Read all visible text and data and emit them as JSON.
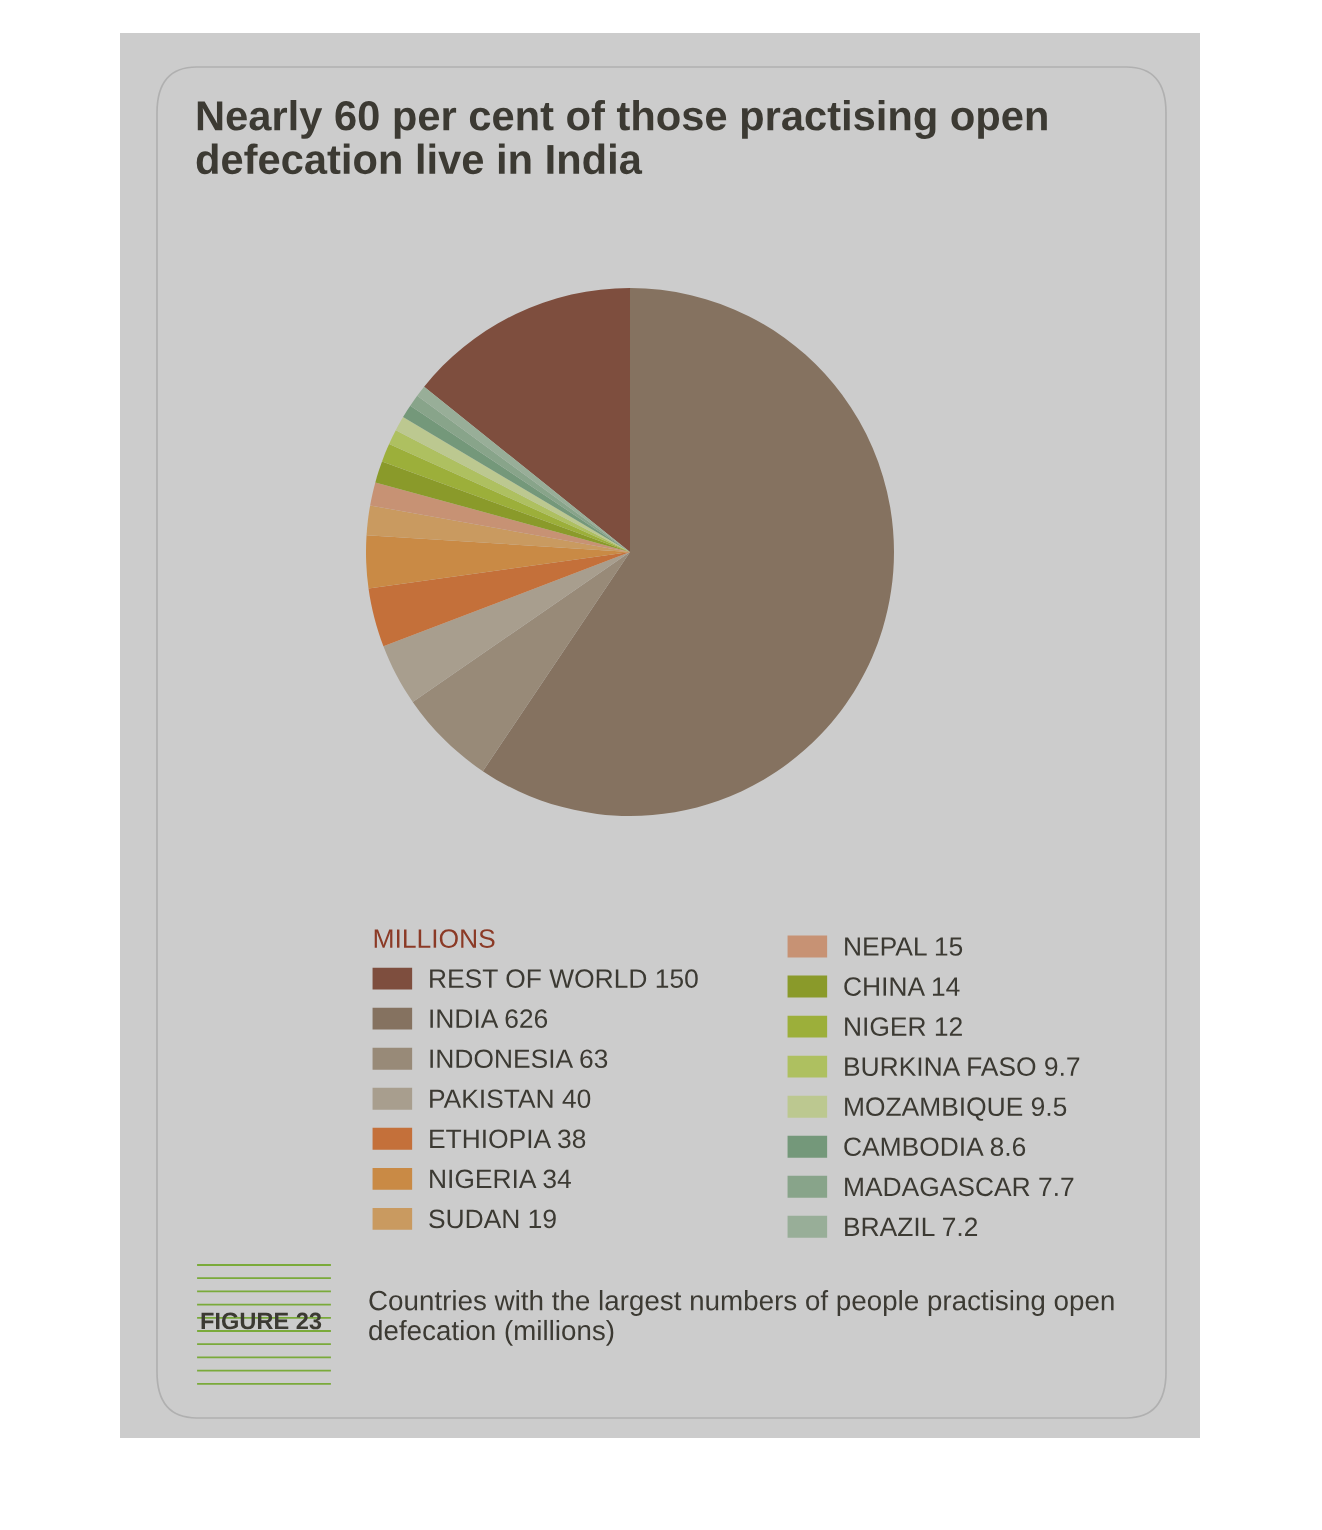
{
  "chart_data": {
    "type": "pie",
    "title": "Nearly 60 per cent of those practising open defecation live in India",
    "legend_title": "MILLIONS",
    "legend": "bottom",
    "categories": [
      "REST OF WORLD 150",
      "INDIA 626",
      "INDONESIA 63",
      "PAKISTAN 40",
      "ETHIOPIA 38",
      "NIGERIA 34",
      "SUDAN 19",
      "NEPAL 15",
      "CHINA 14",
      "NIGER 12",
      "BURKINA FASO 9.7",
      "MOZAMBIQUE 9.5",
      "CAMBODIA 8.6",
      "MADAGASCAR 7.7",
      "BRAZIL 7.2"
    ],
    "values": [
      150,
      626,
      63,
      40,
      38,
      34,
      19,
      15,
      14,
      12,
      9.7,
      9.5,
      8.6,
      7.7,
      7.2
    ],
    "colors": [
      "#7e4e3e",
      "#857260",
      "#988a78",
      "#a89e8e",
      "#c4703a",
      "#c98a45",
      "#c99a60",
      "#c79274",
      "#8a9a2a",
      "#9caf3a",
      "#aec060",
      "#bcc890",
      "#74987a",
      "#88a48a",
      "#98ae98"
    ],
    "annotations": [
      "FIGURE 23",
      "Countries with the largest numbers of people practising open defecation (millions)"
    ]
  }
}
